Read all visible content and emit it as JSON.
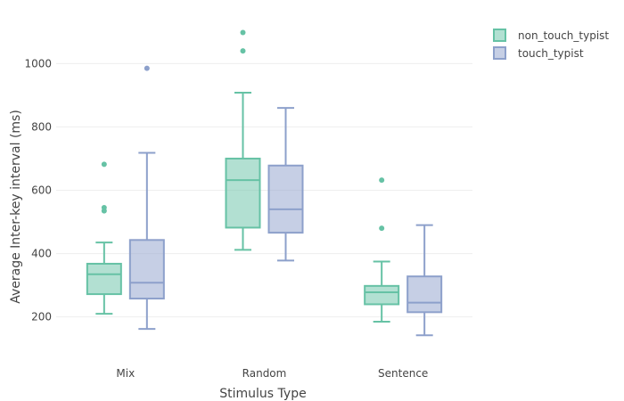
{
  "chart_data": {
    "type": "box",
    "title": "",
    "xlabel": "Stimulus Type",
    "ylabel": "Average Inter-key interval (ms)",
    "categories": [
      "Mix",
      "Random",
      "Sentence"
    ],
    "ylim": [
      95,
      1150
    ],
    "yticks": [
      200,
      400,
      600,
      800,
      1000
    ],
    "grid": true,
    "legend_position": "top-right",
    "series": [
      {
        "name": "non_touch_typist",
        "color": "#66c2a5",
        "boxes": [
          {
            "category": "Mix",
            "lowerfence": 210,
            "q1": 272,
            "median": 335,
            "q3": 368,
            "upperfence": 435,
            "outliers": [
              535,
              545,
              682
            ]
          },
          {
            "category": "Random",
            "lowerfence": 412,
            "q1": 482,
            "median": 632,
            "q3": 700,
            "upperfence": 908,
            "outliers": [
              1040,
              1098
            ]
          },
          {
            "category": "Sentence",
            "lowerfence": 185,
            "q1": 240,
            "median": 278,
            "q3": 298,
            "upperfence": 375,
            "outliers": [
              480,
              632
            ]
          }
        ]
      },
      {
        "name": "touch_typist",
        "color": "#8da0cb",
        "boxes": [
          {
            "category": "Mix",
            "lowerfence": 162,
            "q1": 258,
            "median": 308,
            "q3": 443,
            "upperfence": 718,
            "outliers": [
              985
            ]
          },
          {
            "category": "Random",
            "lowerfence": 378,
            "q1": 466,
            "median": 540,
            "q3": 678,
            "upperfence": 860,
            "outliers": []
          },
          {
            "category": "Sentence",
            "lowerfence": 142,
            "q1": 215,
            "median": 245,
            "q3": 328,
            "upperfence": 490,
            "outliers": []
          }
        ]
      }
    ]
  }
}
